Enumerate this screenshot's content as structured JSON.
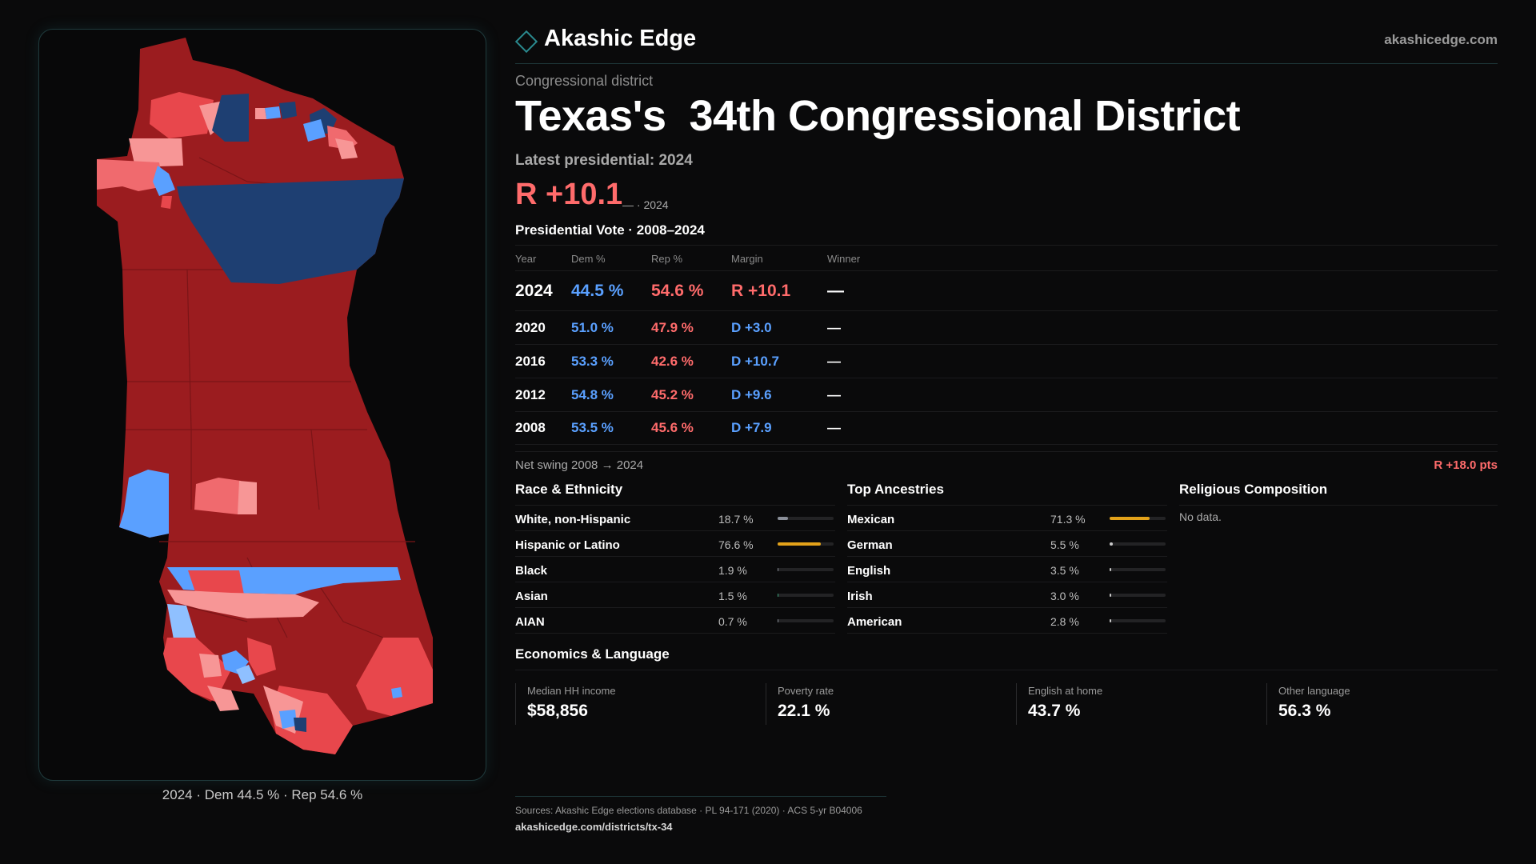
{
  "brand": {
    "name": "Akashic Edge",
    "url": "akashicedge.com"
  },
  "kicker": "Congressional district",
  "title": "Texas's  34th Congressional District",
  "latest_label": "Latest presidential: 2024",
  "latest_margin": "R +10.1",
  "latest_sub": "— · 2024",
  "vote_heading": "Presidential Vote · 2008–2024",
  "vote_columns": {
    "year": "Year",
    "dem": "Dem %",
    "rep": "Rep %",
    "margin": "Margin",
    "winner": "Winner"
  },
  "vote_rows": [
    {
      "year": "2024",
      "dem": "44.5 %",
      "rep": "54.6 %",
      "margin": "R +10.1",
      "winner": "—"
    },
    {
      "year": "2020",
      "dem": "51.0 %",
      "rep": "47.9 %",
      "margin": "D +3.0",
      "winner": "—"
    },
    {
      "year": "2016",
      "dem": "53.3 %",
      "rep": "42.6 %",
      "margin": "D +10.7",
      "winner": "—"
    },
    {
      "year": "2012",
      "dem": "54.8 %",
      "rep": "45.2 %",
      "margin": "D +9.6",
      "winner": "—"
    },
    {
      "year": "2008",
      "dem": "53.5 %",
      "rep": "45.6 %",
      "margin": "D +7.9",
      "winner": "—"
    }
  ],
  "swing": {
    "label": "Net swing 2008 → 2024",
    "value": "R +18.0 pts"
  },
  "race": {
    "heading": "Race & Ethnicity",
    "rows": [
      {
        "label": "White, non-Hispanic",
        "pct": "18.7 %",
        "fraction": 0.187,
        "color": "#8a8f99"
      },
      {
        "label": "Hispanic or Latino",
        "pct": "76.6 %",
        "fraction": 0.766,
        "color": "#e3a21a"
      },
      {
        "label": "Black",
        "pct": "1.9 %",
        "fraction": 0.019,
        "color": "#8a8f99"
      },
      {
        "label": "Asian",
        "pct": "1.5 %",
        "fraction": 0.015,
        "color": "#3aa37a"
      },
      {
        "label": "AIAN",
        "pct": "0.7 %",
        "fraction": 0.007,
        "color": "#8a8f99"
      }
    ]
  },
  "ancestry": {
    "heading": "Top Ancestries",
    "rows": [
      {
        "label": "Mexican",
        "pct": "71.3 %",
        "fraction": 0.713,
        "color": "#e3a21a"
      },
      {
        "label": "German",
        "pct": "5.5 %",
        "fraction": 0.055,
        "color": "#c9c9c9"
      },
      {
        "label": "English",
        "pct": "3.5 %",
        "fraction": 0.035,
        "color": "#c9c9c9"
      },
      {
        "label": "Irish",
        "pct": "3.0 %",
        "fraction": 0.03,
        "color": "#c9c9c9"
      },
      {
        "label": "American",
        "pct": "2.8 %",
        "fraction": 0.028,
        "color": "#c9c9c9"
      }
    ]
  },
  "religion": {
    "heading": "Religious Composition",
    "empty": "No data."
  },
  "econ": {
    "heading": "Economics & Language",
    "items": [
      {
        "label": "Median HH income",
        "value": "$58,856"
      },
      {
        "label": "Poverty rate",
        "value": "22.1 %"
      },
      {
        "label": "English at home",
        "value": "43.7 %"
      },
      {
        "label": "Other language",
        "value": "56.3 %"
      }
    ]
  },
  "footer": {
    "sources": "Sources: Akashic Edge elections database · PL 94-171 (2020) · ACS 5-yr B04006",
    "url": "akashicedge.com/districts/tx-34"
  },
  "map_caption": "2024 · Dem 44.5 % · Rep 54.6 %",
  "colors": {
    "safe_r": "#9b1c1f",
    "lean_r": "#e8474c",
    "tilt_r": "#f79696",
    "safe_d": "#1e3f72",
    "lean_d": "#5aa0ff",
    "tilt_d": "#8fc0ff"
  }
}
